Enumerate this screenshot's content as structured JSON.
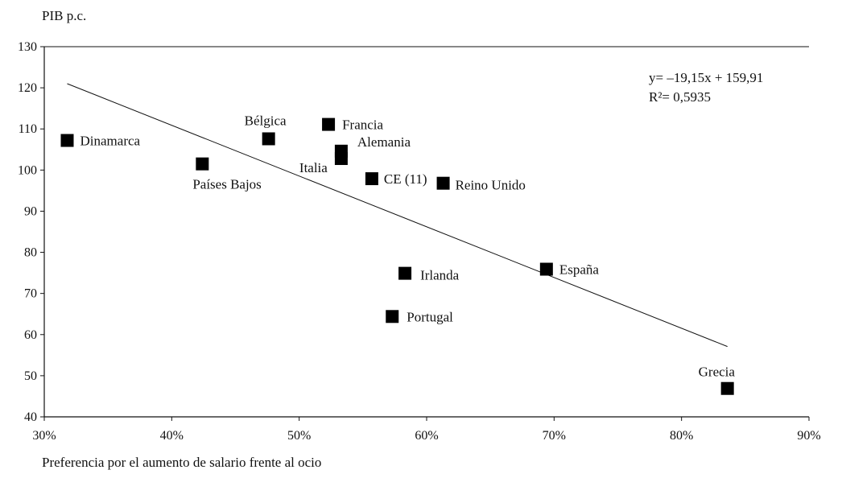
{
  "chart_data": {
    "type": "scatter",
    "ylabel": "PIB p.c.",
    "xlabel": "Preferencia por el aumento de salario frente al ocio",
    "xlim": [
      30,
      90
    ],
    "ylim": [
      40,
      130
    ],
    "x_ticks": [
      "30%",
      "40%",
      "50%",
      "60%",
      "70%",
      "80%",
      "90%"
    ],
    "y_ticks": [
      "40",
      "50",
      "60",
      "70",
      "80",
      "90",
      "100",
      "110",
      "120",
      "130"
    ],
    "points": [
      {
        "label": "Dinamarca",
        "x": 31.8,
        "y": 107.2
      },
      {
        "label": "Países Bajos",
        "x": 42.4,
        "y": 101.5
      },
      {
        "label": "Bélgica",
        "x": 47.6,
        "y": 107.6
      },
      {
        "label": "Francia",
        "x": 52.3,
        "y": 111.1
      },
      {
        "label": "Alemania",
        "x": 53.3,
        "y": 104.6
      },
      {
        "label": "Italia",
        "x": 53.3,
        "y": 102.8
      },
      {
        "label": "CE (11)",
        "x": 55.7,
        "y": 97.9
      },
      {
        "label": "Reino Unido",
        "x": 61.3,
        "y": 96.8
      },
      {
        "label": "Irlanda",
        "x": 58.3,
        "y": 74.9
      },
      {
        "label": "Portugal",
        "x": 57.3,
        "y": 64.4
      },
      {
        "label": "España",
        "x": 69.4,
        "y": 75.9
      },
      {
        "label": "Grecia",
        "x": 83.6,
        "y": 46.9
      }
    ],
    "trendline": {
      "equation": "y= –19,15x + 159,91",
      "r2": "R²= 0,5935",
      "x_start": 31.8,
      "x_end": 83.6
    }
  }
}
